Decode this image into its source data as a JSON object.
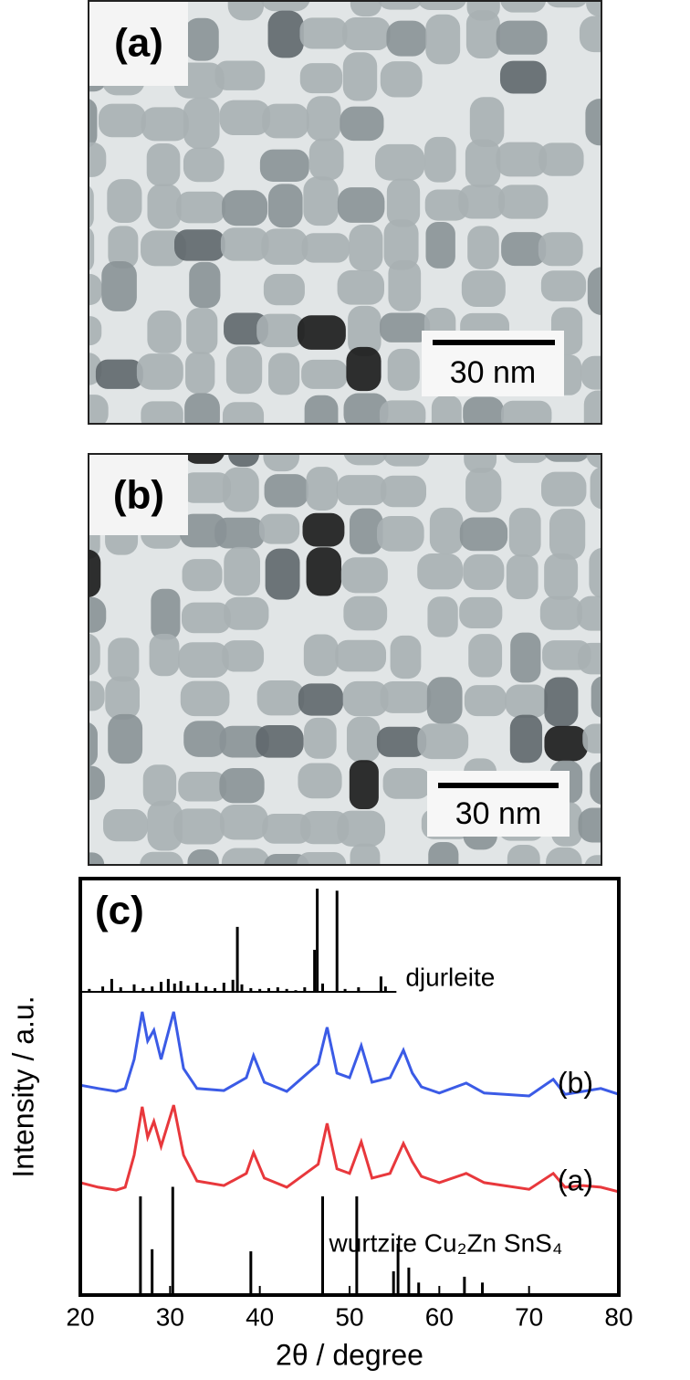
{
  "panels": [
    {
      "label": "(a)",
      "scale_bar": "30 nm"
    },
    {
      "label": "(b)",
      "scale_bar": "30 nm"
    }
  ],
  "chart_data": {
    "type": "line",
    "panel_label": "(c)",
    "xlabel": "2θ / degree",
    "ylabel": "Intensity / a.u.",
    "xlim": [
      20,
      80
    ],
    "xticks": [
      20,
      30,
      40,
      50,
      60,
      70,
      80
    ],
    "ylim": [
      0,
      100
    ],
    "x": [
      20,
      22,
      24,
      25,
      26,
      26.9,
      27.5,
      28.2,
      29,
      30.4,
      31.5,
      33,
      36,
      38.5,
      39.3,
      40.5,
      43,
      46.5,
      47.5,
      48.6,
      50,
      51.3,
      52.5,
      54.5,
      56,
      57,
      58,
      60,
      63,
      65,
      70,
      72.7,
      74,
      76,
      78,
      80
    ],
    "series": [
      {
        "name": "(b)",
        "color": "#3b5be6",
        "values": [
          50.4,
          49.6,
          48.9,
          49.6,
          56.6,
          68.0,
          61.0,
          63.6,
          56.6,
          68.0,
          54.4,
          49.6,
          49.1,
          52.2,
          57.5,
          51.1,
          48.9,
          55.5,
          64.3,
          53.3,
          52.2,
          59.9,
          51.1,
          52.2,
          58.8,
          53.3,
          50.0,
          48.5,
          50.9,
          48.5,
          47.8,
          51.8,
          48.2,
          48.9,
          49.6,
          48.2
        ]
      },
      {
        "name": "(a)",
        "color": "#e8383c",
        "values": [
          27.0,
          25.9,
          25.2,
          25.9,
          33.6,
          45.2,
          37.9,
          41.7,
          35.7,
          45.6,
          33.6,
          27.4,
          26.3,
          29.2,
          34.2,
          28.1,
          25.9,
          31.4,
          41.2,
          30.3,
          29.2,
          36.8,
          28.1,
          29.2,
          36.4,
          32.0,
          28.5,
          27.0,
          29.2,
          27.0,
          25.4,
          29.2,
          25.9,
          26.3,
          25.9,
          24.8
        ]
      }
    ],
    "references": [
      {
        "name": "djurleite",
        "color": "#000000",
        "base": 72.8,
        "x": [
          21,
          22.5,
          23.5,
          24.5,
          26,
          27,
          28,
          29,
          29.8,
          30.5,
          31.2,
          32,
          33,
          34,
          35,
          36,
          37,
          37.5,
          38,
          39,
          40,
          41,
          42,
          43,
          44,
          45,
          46.1,
          46.4,
          47,
          48.6,
          49.5,
          51,
          53.5,
          54
        ],
        "values": [
          0.7,
          1.3,
          3.1,
          1.1,
          1.8,
          0.9,
          1.3,
          2.4,
          3.1,
          2.0,
          2.6,
          1.5,
          2.2,
          1.3,
          0.9,
          2.2,
          2.9,
          15.6,
          1.8,
          0.9,
          0.7,
          0.9,
          1.1,
          0.7,
          0.4,
          1.1,
          10.1,
          24.8,
          2.0,
          24.3,
          0.7,
          1.1,
          3.7,
          1.3
        ]
      },
      {
        "name": "wurtzite Cu₂Zn SnS₄",
        "color": "#000000",
        "base": 0,
        "x": [
          26.7,
          28.0,
          30.3,
          39.0,
          47.0,
          50.8,
          54.9,
          55.4,
          56.6,
          57.7,
          62.8,
          64.8
        ],
        "values": [
          23.7,
          11,
          26,
          10.5,
          23.7,
          23.7,
          5.7,
          12.3,
          6.6,
          3,
          4.4,
          3
        ]
      }
    ]
  }
}
